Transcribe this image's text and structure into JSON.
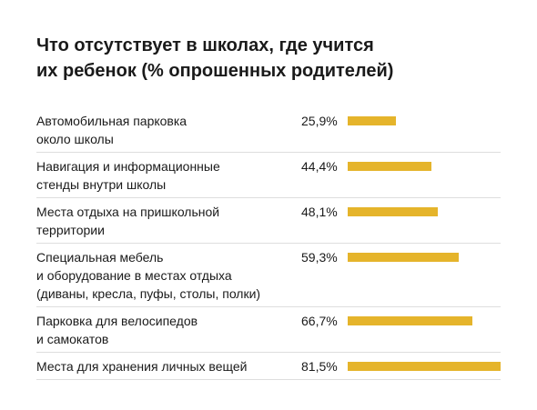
{
  "chart_data": {
    "type": "bar",
    "orientation": "horizontal",
    "title": "Что отсутствует в школах, где учится\nих ребенок (% опрошенных родителей)",
    "categories": [
      "Автомобильная парковка\nоколо школы",
      "Навигация и информационные\nстенды внутри школы",
      "Места отдыха на пришкольной\nтерритории",
      "Специальная мебель\nи оборудование в местах отдыха\n(диваны, кресла, пуфы, столы, полки)",
      "Парковка для велосипедов\nи самокатов",
      "Места для хранения личных вещей"
    ],
    "values": [
      25.9,
      44.4,
      48.1,
      59.3,
      66.7,
      81.5
    ],
    "value_labels": [
      "25,9%",
      "44,4%",
      "48,1%",
      "59,3%",
      "66,7%",
      "81,5%"
    ],
    "color": "#e5b42b"
  }
}
